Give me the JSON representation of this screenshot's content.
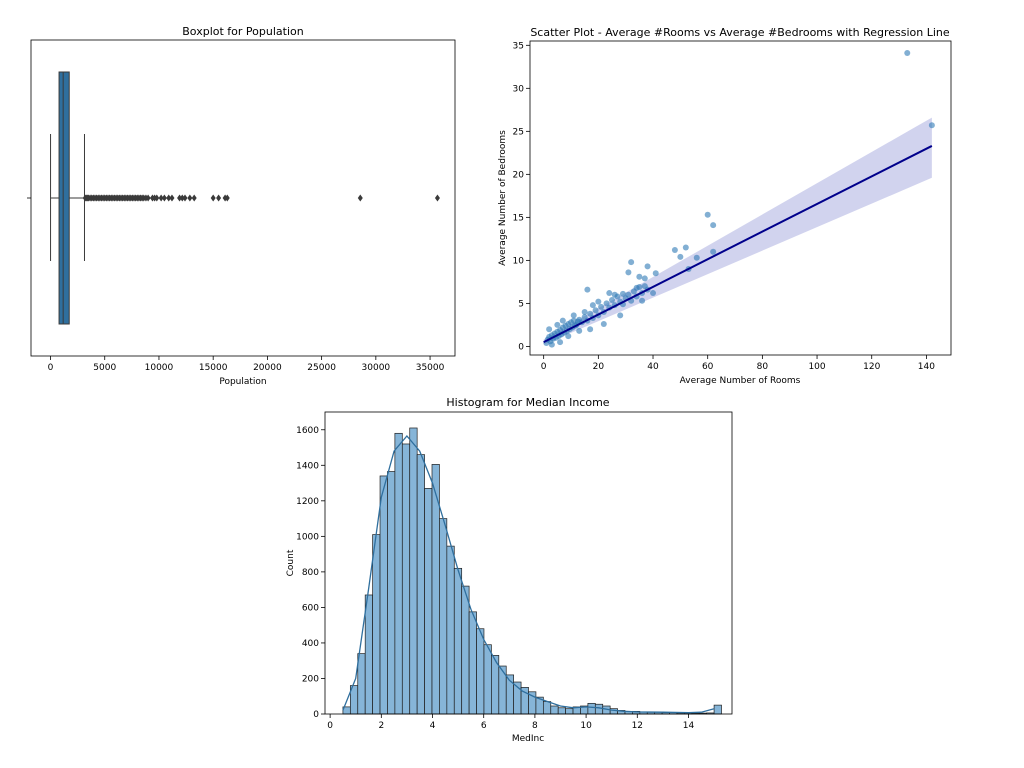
{
  "chart_data": [
    {
      "type": "box",
      "title": "Boxplot for Population",
      "xlabel": "Population",
      "ylabel": "",
      "xlim": [
        -1800,
        37300
      ],
      "xticks": [
        0,
        5000,
        10000,
        15000,
        20000,
        25000,
        30000,
        35000
      ],
      "xtick_labels": [
        "0",
        "5000",
        "10000",
        "15000",
        "20000",
        "25000",
        "30000",
        "35000"
      ],
      "box": {
        "whisker_low": 3,
        "q1": 787,
        "median": 1166,
        "q3": 1725,
        "whisker_high": 3132
      },
      "fliers": [
        3200,
        3300,
        3400,
        3500,
        3650,
        3800,
        3950,
        4100,
        4250,
        4400,
        4550,
        4700,
        4850,
        5000,
        5150,
        5300,
        5450,
        5600,
        5750,
        5900,
        6050,
        6200,
        6350,
        6500,
        6650,
        6800,
        6950,
        7100,
        7250,
        7400,
        7550,
        7700,
        7850,
        8000,
        8150,
        8300,
        8450,
        8600,
        8800,
        9000,
        9400,
        9600,
        9800,
        10200,
        10500,
        10900,
        11200,
        11900,
        12150,
        12400,
        12850,
        13250,
        15000,
        15500,
        16100,
        16300,
        28566,
        35682
      ],
      "color": "#2f6f9e"
    },
    {
      "type": "scatter",
      "title": "Scatter Plot - Average #Rooms vs Average #Bedrooms with Regression Line",
      "xlabel": "Average Number of Rooms",
      "ylabel": "Average Number of Bedrooms",
      "xlim": [
        -5,
        149
      ],
      "ylim": [
        -1,
        35.5
      ],
      "xticks": [
        0,
        20,
        40,
        60,
        80,
        100,
        120,
        140
      ],
      "xtick_labels": [
        "0",
        "20",
        "40",
        "60",
        "80",
        "100",
        "120",
        "140"
      ],
      "yticks": [
        0,
        5,
        10,
        15,
        20,
        25,
        30,
        35
      ],
      "ytick_labels": [
        "0",
        "5",
        "10",
        "15",
        "20",
        "25",
        "30",
        "35"
      ],
      "points": [
        [
          1,
          0.4
        ],
        [
          1.5,
          0.8
        ],
        [
          2,
          1.1
        ],
        [
          2.5,
          0.6
        ],
        [
          3,
          1.3
        ],
        [
          3.5,
          0.9
        ],
        [
          4,
          1.5
        ],
        [
          4.5,
          1.0
        ],
        [
          5,
          1.7
        ],
        [
          5.5,
          1.2
        ],
        [
          6,
          1.9
        ],
        [
          6.5,
          1.4
        ],
        [
          7,
          2.2
        ],
        [
          7.5,
          1.6
        ],
        [
          8,
          2.4
        ],
        [
          8.5,
          1.8
        ],
        [
          9,
          2.6
        ],
        [
          9.5,
          2.0
        ],
        [
          10,
          2.8
        ],
        [
          10.5,
          2.2
        ],
        [
          11,
          3.0
        ],
        [
          11.5,
          2.4
        ],
        [
          12,
          2.5
        ],
        [
          12.5,
          2.9
        ],
        [
          13,
          3.1
        ],
        [
          14,
          2.8
        ],
        [
          15,
          3.4
        ],
        [
          16,
          3.0
        ],
        [
          17,
          3.8
        ],
        [
          18,
          3.3
        ],
        [
          19,
          4.2
        ],
        [
          20,
          3.6
        ],
        [
          21,
          4.6
        ],
        [
          22,
          4.0
        ],
        [
          23,
          5.0
        ],
        [
          24,
          4.5
        ],
        [
          25,
          5.4
        ],
        [
          26,
          4.8
        ],
        [
          27,
          5.8
        ],
        [
          28,
          5.2
        ],
        [
          29,
          4.9
        ],
        [
          30,
          5.6
        ],
        [
          31,
          6.0
        ],
        [
          32,
          5.3
        ],
        [
          33,
          6.4
        ],
        [
          34,
          5.8
        ],
        [
          35,
          6.9
        ],
        [
          36,
          6.2
        ],
        [
          37,
          7.0
        ],
        [
          38,
          6.6
        ],
        [
          31,
          8.6
        ],
        [
          32,
          9.8
        ],
        [
          34,
          6.8
        ],
        [
          35,
          8.1
        ],
        [
          36,
          5.3
        ],
        [
          37,
          7.9
        ],
        [
          38,
          9.3
        ],
        [
          40,
          6.2
        ],
        [
          41,
          8.5
        ],
        [
          48,
          11.2
        ],
        [
          50,
          10.4
        ],
        [
          52,
          11.5
        ],
        [
          53,
          9.0
        ],
        [
          56,
          10.3
        ],
        [
          60,
          15.3
        ],
        [
          62,
          14.1
        ],
        [
          62,
          11.0
        ],
        [
          16,
          6.6
        ],
        [
          20,
          5.2
        ],
        [
          22,
          2.6
        ],
        [
          2,
          2.0
        ],
        [
          3,
          0.2
        ],
        [
          5,
          2.5
        ],
        [
          6,
          0.5
        ],
        [
          7,
          3.0
        ],
        [
          9,
          1.2
        ],
        [
          11,
          3.6
        ],
        [
          13,
          1.8
        ],
        [
          15,
          4.0
        ],
        [
          17,
          2.0
        ],
        [
          18,
          4.8
        ],
        [
          24,
          6.2
        ],
        [
          26,
          6.0
        ],
        [
          28,
          3.6
        ],
        [
          29,
          6.1
        ],
        [
          133,
          34.1
        ],
        [
          142,
          25.7
        ]
      ],
      "regression": {
        "x": [
          0,
          142
        ],
        "y": [
          0.5,
          23.3
        ],
        "ci_lower": [
          0.2,
          19.6
        ],
        "ci_upper": [
          0.8,
          26.6
        ]
      },
      "point_color": "#2f79b5",
      "line_color": "#00008b",
      "band_color": "#c9cbeb"
    },
    {
      "type": "histogram",
      "title": "Histogram for Median Income",
      "xlabel": "MedInc",
      "ylabel": "Count",
      "xlim": [
        -0.2,
        15.7
      ],
      "ylim": [
        0,
        1700
      ],
      "xticks": [
        0,
        2,
        4,
        6,
        8,
        10,
        12,
        14
      ],
      "xtick_labels": [
        "0",
        "2",
        "4",
        "6",
        "8",
        "10",
        "12",
        "14"
      ],
      "yticks": [
        0,
        200,
        400,
        600,
        800,
        1000,
        1200,
        1400,
        1600
      ],
      "ytick_labels": [
        "0",
        "200",
        "400",
        "600",
        "800",
        "1000",
        "1200",
        "1400",
        "1600"
      ],
      "bin_start": 0.5,
      "bin_width": 0.29,
      "counts": [
        40,
        160,
        340,
        670,
        1010,
        1340,
        1365,
        1580,
        1520,
        1610,
        1460,
        1270,
        1405,
        1100,
        945,
        820,
        720,
        575,
        480,
        390,
        330,
        270,
        220,
        180,
        150,
        125,
        95,
        70,
        45,
        35,
        30,
        40,
        45,
        60,
        55,
        45,
        30,
        20,
        15,
        15,
        12,
        10,
        10,
        8,
        8,
        6,
        6,
        5,
        5,
        6,
        50
      ],
      "kde": [
        [
          0.5,
          20
        ],
        [
          1.0,
          200
        ],
        [
          1.5,
          700
        ],
        [
          2.0,
          1220
        ],
        [
          2.5,
          1480
        ],
        [
          3.0,
          1565
        ],
        [
          3.5,
          1480
        ],
        [
          4.0,
          1300
        ],
        [
          4.5,
          1060
        ],
        [
          5.0,
          810
        ],
        [
          5.5,
          590
        ],
        [
          6.0,
          420
        ],
        [
          6.5,
          290
        ],
        [
          7.0,
          190
        ],
        [
          7.5,
          130
        ],
        [
          8.0,
          95
        ],
        [
          8.5,
          70
        ],
        [
          9.0,
          45
        ],
        [
          9.5,
          35
        ],
        [
          10.0,
          40
        ],
        [
          10.5,
          35
        ],
        [
          11.0,
          22
        ],
        [
          11.5,
          15
        ],
        [
          12.0,
          12
        ],
        [
          13.0,
          10
        ],
        [
          14.0,
          8
        ],
        [
          14.5,
          10
        ],
        [
          15.0,
          30
        ]
      ],
      "bar_color": "#86b5d8",
      "line_color": "#2f6f9e"
    }
  ]
}
